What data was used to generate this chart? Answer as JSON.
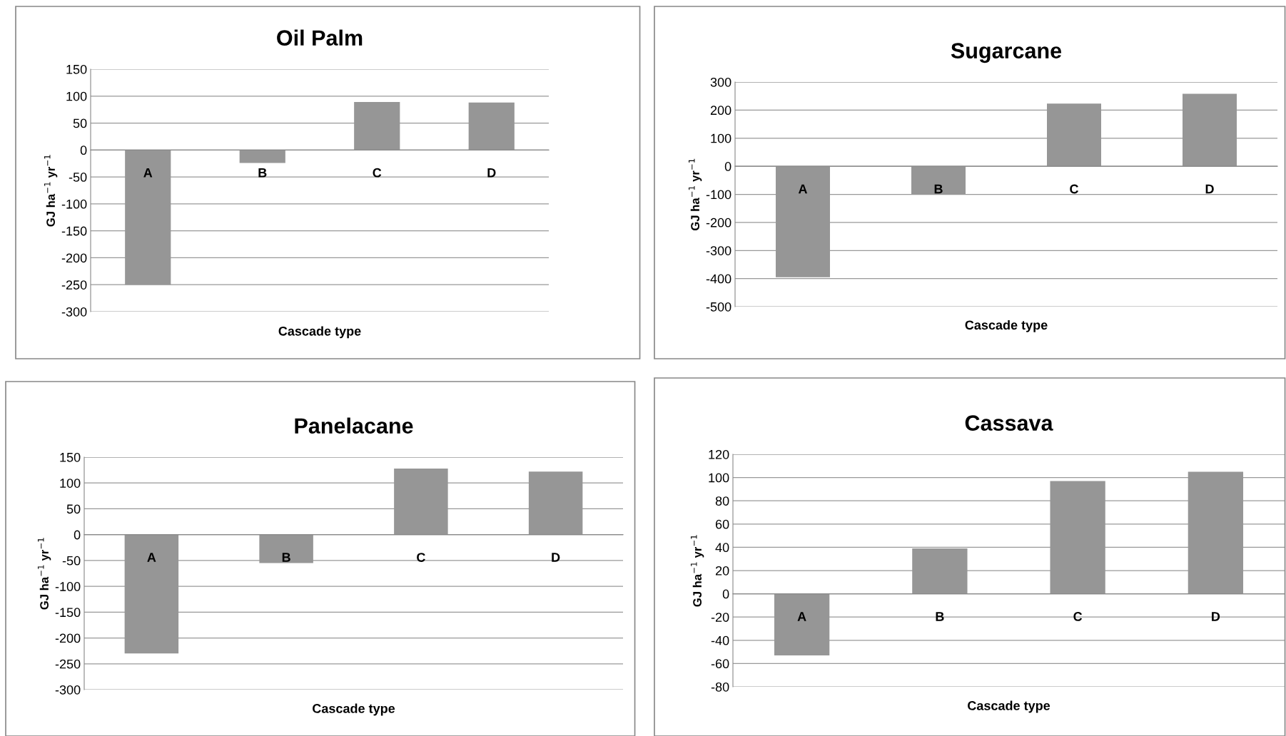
{
  "chart_data": [
    {
      "type": "bar",
      "title": "Oil Palm",
      "xlabel": "Cascade type",
      "ylabel": "GJ ha$^{−1}$ yr$^{−1}$",
      "categories": [
        "A",
        "B",
        "C",
        "D"
      ],
      "values": [
        -250,
        -24,
        89,
        88
      ],
      "color": "#969696",
      "ylim": [
        -300,
        150
      ],
      "yticks": [
        -300,
        -250,
        -200,
        -150,
        -100,
        -50,
        0,
        50,
        100,
        150
      ],
      "grid": "y"
    },
    {
      "type": "bar",
      "title": "Sugarcane",
      "xlabel": "Cascade type",
      "ylabel": "GJ ha$^{−1}$ yr$^{−1}$",
      "categories": [
        "A",
        "B",
        "C",
        "D"
      ],
      "values": [
        -395,
        -100,
        223,
        258
      ],
      "color": "#969696",
      "ylim": [
        -500,
        300
      ],
      "yticks": [
        -500,
        -400,
        -300,
        -200,
        -100,
        0,
        100,
        200,
        300
      ],
      "grid": "y"
    },
    {
      "type": "bar",
      "title": "Panelacane",
      "xlabel": "Cascade type",
      "ylabel": "GJ ha$^{−1}$ yr$^{−1}$",
      "categories": [
        "A",
        "B",
        "C",
        "D"
      ],
      "values": [
        -230,
        -55,
        128,
        122
      ],
      "color": "#969696",
      "ylim": [
        -300,
        150
      ],
      "yticks": [
        -300,
        -250,
        -200,
        -150,
        -100,
        -50,
        0,
        50,
        100,
        150
      ],
      "grid": "y"
    },
    {
      "type": "bar",
      "title": "Cassava",
      "xlabel": "Cascade type",
      "ylabel": "GJ ha$^{−1}$ yr$^{−1}$",
      "categories": [
        "A",
        "B",
        "C",
        "D"
      ],
      "values": [
        -53,
        39,
        97,
        105
      ],
      "color": "#969696",
      "ylim": [
        -80,
        120
      ],
      "yticks": [
        -80,
        -60,
        -40,
        -20,
        0,
        20,
        40,
        60,
        80,
        100,
        120
      ],
      "grid": "y"
    }
  ]
}
